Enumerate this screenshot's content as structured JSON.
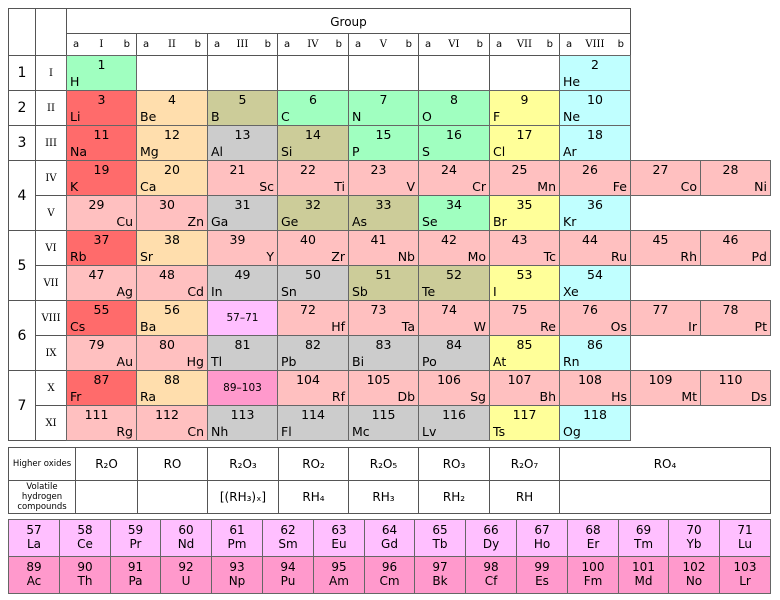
{
  "header": {
    "title": "Group",
    "groups": [
      {
        "a": "a",
        "roman": "I",
        "b": "b"
      },
      {
        "a": "a",
        "roman": "II",
        "b": "b"
      },
      {
        "a": "a",
        "roman": "III",
        "b": "b"
      },
      {
        "a": "a",
        "roman": "IV",
        "b": "b"
      },
      {
        "a": "a",
        "roman": "V",
        "b": "b"
      },
      {
        "a": "a",
        "roman": "VI",
        "b": "b"
      },
      {
        "a": "a",
        "roman": "VII",
        "b": "b"
      },
      {
        "a": "a",
        "roman": "VIII",
        "b": "b"
      }
    ]
  },
  "colors": {
    "alkali": "#ff6b6b",
    "alkaline_earth": "#ffdead",
    "metalloid": "#cccc99",
    "nonmetal": "#a0ffc0",
    "halogen": "#ffff99",
    "noble_gas": "#c0ffff",
    "transition": "#ffc0c0",
    "post_transition": "#cccccc",
    "lanthanide": "#ffbfff",
    "actinide": "#ff99cc"
  },
  "periods": [
    {
      "num": "1",
      "rows": [
        "I"
      ]
    },
    {
      "num": "2",
      "rows": [
        "II"
      ]
    },
    {
      "num": "3",
      "rows": [
        "III"
      ]
    },
    {
      "num": "4",
      "rows": [
        "IV",
        "V"
      ]
    },
    {
      "num": "5",
      "rows": [
        "VI",
        "VII"
      ]
    },
    {
      "num": "6",
      "rows": [
        "VIII",
        "IX"
      ]
    },
    {
      "num": "7",
      "rows": [
        "X",
        "XI"
      ]
    }
  ],
  "elements": [
    {
      "num": "1",
      "sym": "H",
      "row": 0,
      "col": 0,
      "side": "a",
      "cat": "nonmetal"
    },
    {
      "num": "2",
      "sym": "He",
      "row": 0,
      "col": 7,
      "side": "a",
      "cat": "noble_gas"
    },
    {
      "num": "3",
      "sym": "Li",
      "row": 1,
      "col": 0,
      "side": "a",
      "cat": "alkali"
    },
    {
      "num": "4",
      "sym": "Be",
      "row": 1,
      "col": 1,
      "side": "a",
      "cat": "alkaline_earth"
    },
    {
      "num": "5",
      "sym": "B",
      "row": 1,
      "col": 2,
      "side": "a",
      "cat": "metalloid"
    },
    {
      "num": "6",
      "sym": "C",
      "row": 1,
      "col": 3,
      "side": "a",
      "cat": "nonmetal"
    },
    {
      "num": "7",
      "sym": "N",
      "row": 1,
      "col": 4,
      "side": "a",
      "cat": "nonmetal"
    },
    {
      "num": "8",
      "sym": "O",
      "row": 1,
      "col": 5,
      "side": "a",
      "cat": "nonmetal"
    },
    {
      "num": "9",
      "sym": "F",
      "row": 1,
      "col": 6,
      "side": "a",
      "cat": "halogen"
    },
    {
      "num": "10",
      "sym": "Ne",
      "row": 1,
      "col": 7,
      "side": "a",
      "cat": "noble_gas"
    },
    {
      "num": "11",
      "sym": "Na",
      "row": 2,
      "col": 0,
      "side": "a",
      "cat": "alkali"
    },
    {
      "num": "12",
      "sym": "Mg",
      "row": 2,
      "col": 1,
      "side": "a",
      "cat": "alkaline_earth"
    },
    {
      "num": "13",
      "sym": "Al",
      "row": 2,
      "col": 2,
      "side": "a",
      "cat": "post_transition"
    },
    {
      "num": "14",
      "sym": "Si",
      "row": 2,
      "col": 3,
      "side": "a",
      "cat": "metalloid"
    },
    {
      "num": "15",
      "sym": "P",
      "row": 2,
      "col": 4,
      "side": "a",
      "cat": "nonmetal"
    },
    {
      "num": "16",
      "sym": "S",
      "row": 2,
      "col": 5,
      "side": "a",
      "cat": "nonmetal"
    },
    {
      "num": "17",
      "sym": "Cl",
      "row": 2,
      "col": 6,
      "side": "a",
      "cat": "halogen"
    },
    {
      "num": "18",
      "sym": "Ar",
      "row": 2,
      "col": 7,
      "side": "a",
      "cat": "noble_gas"
    },
    {
      "num": "19",
      "sym": "K",
      "row": 3,
      "col": 0,
      "side": "a",
      "cat": "alkali"
    },
    {
      "num": "20",
      "sym": "Ca",
      "row": 3,
      "col": 1,
      "side": "a",
      "cat": "alkaline_earth"
    },
    {
      "num": "21",
      "sym": "Sc",
      "row": 3,
      "col": 2,
      "side": "b",
      "cat": "transition"
    },
    {
      "num": "22",
      "sym": "Ti",
      "row": 3,
      "col": 3,
      "side": "b",
      "cat": "transition"
    },
    {
      "num": "23",
      "sym": "V",
      "row": 3,
      "col": 4,
      "side": "b",
      "cat": "transition"
    },
    {
      "num": "24",
      "sym": "Cr",
      "row": 3,
      "col": 5,
      "side": "b",
      "cat": "transition"
    },
    {
      "num": "25",
      "sym": "Mn",
      "row": 3,
      "col": 6,
      "side": "b",
      "cat": "transition"
    },
    {
      "num": "26",
      "sym": "Fe",
      "row": 3,
      "col": 7,
      "side": "b",
      "cat": "transition"
    },
    {
      "num": "27",
      "sym": "Co",
      "row": 3,
      "col": 8,
      "side": "b",
      "cat": "transition"
    },
    {
      "num": "28",
      "sym": "Ni",
      "row": 3,
      "col": 9,
      "side": "b",
      "cat": "transition"
    },
    {
      "num": "29",
      "sym": "Cu",
      "row": 4,
      "col": 0,
      "side": "b",
      "cat": "transition"
    },
    {
      "num": "30",
      "sym": "Zn",
      "row": 4,
      "col": 1,
      "side": "b",
      "cat": "transition"
    },
    {
      "num": "31",
      "sym": "Ga",
      "row": 4,
      "col": 2,
      "side": "a",
      "cat": "post_transition"
    },
    {
      "num": "32",
      "sym": "Ge",
      "row": 4,
      "col": 3,
      "side": "a",
      "cat": "metalloid"
    },
    {
      "num": "33",
      "sym": "As",
      "row": 4,
      "col": 4,
      "side": "a",
      "cat": "metalloid"
    },
    {
      "num": "34",
      "sym": "Se",
      "row": 4,
      "col": 5,
      "side": "a",
      "cat": "nonmetal"
    },
    {
      "num": "35",
      "sym": "Br",
      "row": 4,
      "col": 6,
      "side": "a",
      "cat": "halogen"
    },
    {
      "num": "36",
      "sym": "Kr",
      "row": 4,
      "col": 7,
      "side": "a",
      "cat": "noble_gas"
    },
    {
      "num": "37",
      "sym": "Rb",
      "row": 5,
      "col": 0,
      "side": "a",
      "cat": "alkali"
    },
    {
      "num": "38",
      "sym": "Sr",
      "row": 5,
      "col": 1,
      "side": "a",
      "cat": "alkaline_earth"
    },
    {
      "num": "39",
      "sym": "Y",
      "row": 5,
      "col": 2,
      "side": "b",
      "cat": "transition"
    },
    {
      "num": "40",
      "sym": "Zr",
      "row": 5,
      "col": 3,
      "side": "b",
      "cat": "transition"
    },
    {
      "num": "41",
      "sym": "Nb",
      "row": 5,
      "col": 4,
      "side": "b",
      "cat": "transition"
    },
    {
      "num": "42",
      "sym": "Mo",
      "row": 5,
      "col": 5,
      "side": "b",
      "cat": "transition"
    },
    {
      "num": "43",
      "sym": "Tc",
      "row": 5,
      "col": 6,
      "side": "b",
      "cat": "transition"
    },
    {
      "num": "44",
      "sym": "Ru",
      "row": 5,
      "col": 7,
      "side": "b",
      "cat": "transition"
    },
    {
      "num": "45",
      "sym": "Rh",
      "row": 5,
      "col": 8,
      "side": "b",
      "cat": "transition"
    },
    {
      "num": "46",
      "sym": "Pd",
      "row": 5,
      "col": 9,
      "side": "b",
      "cat": "transition"
    },
    {
      "num": "47",
      "sym": "Ag",
      "row": 6,
      "col": 0,
      "side": "b",
      "cat": "transition"
    },
    {
      "num": "48",
      "sym": "Cd",
      "row": 6,
      "col": 1,
      "side": "b",
      "cat": "transition"
    },
    {
      "num": "49",
      "sym": "In",
      "row": 6,
      "col": 2,
      "side": "a",
      "cat": "post_transition"
    },
    {
      "num": "50",
      "sym": "Sn",
      "row": 6,
      "col": 3,
      "side": "a",
      "cat": "post_transition"
    },
    {
      "num": "51",
      "sym": "Sb",
      "row": 6,
      "col": 4,
      "side": "a",
      "cat": "metalloid"
    },
    {
      "num": "52",
      "sym": "Te",
      "row": 6,
      "col": 5,
      "side": "a",
      "cat": "metalloid"
    },
    {
      "num": "53",
      "sym": "I",
      "row": 6,
      "col": 6,
      "side": "a",
      "cat": "halogen"
    },
    {
      "num": "54",
      "sym": "Xe",
      "row": 6,
      "col": 7,
      "side": "a",
      "cat": "noble_gas"
    },
    {
      "num": "55",
      "sym": "Cs",
      "row": 7,
      "col": 0,
      "side": "a",
      "cat": "alkali"
    },
    {
      "num": "56",
      "sym": "Ba",
      "row": 7,
      "col": 1,
      "side": "a",
      "cat": "alkaline_earth"
    },
    {
      "num": "57–71",
      "sym": "",
      "row": 7,
      "col": 2,
      "side": "range",
      "cat": "lanthanide"
    },
    {
      "num": "72",
      "sym": "Hf",
      "row": 7,
      "col": 3,
      "side": "b",
      "cat": "transition"
    },
    {
      "num": "73",
      "sym": "Ta",
      "row": 7,
      "col": 4,
      "side": "b",
      "cat": "transition"
    },
    {
      "num": "74",
      "sym": "W",
      "row": 7,
      "col": 5,
      "side": "b",
      "cat": "transition"
    },
    {
      "num": "75",
      "sym": "Re",
      "row": 7,
      "col": 6,
      "side": "b",
      "cat": "transition"
    },
    {
      "num": "76",
      "sym": "Os",
      "row": 7,
      "col": 7,
      "side": "b",
      "cat": "transition"
    },
    {
      "num": "77",
      "sym": "Ir",
      "row": 7,
      "col": 8,
      "side": "b",
      "cat": "transition"
    },
    {
      "num": "78",
      "sym": "Pt",
      "row": 7,
      "col": 9,
      "side": "b",
      "cat": "transition"
    },
    {
      "num": "79",
      "sym": "Au",
      "row": 8,
      "col": 0,
      "side": "b",
      "cat": "transition"
    },
    {
      "num": "80",
      "sym": "Hg",
      "row": 8,
      "col": 1,
      "side": "b",
      "cat": "transition"
    },
    {
      "num": "81",
      "sym": "Tl",
      "row": 8,
      "col": 2,
      "side": "a",
      "cat": "post_transition"
    },
    {
      "num": "82",
      "sym": "Pb",
      "row": 8,
      "col": 3,
      "side": "a",
      "cat": "post_transition"
    },
    {
      "num": "83",
      "sym": "Bi",
      "row": 8,
      "col": 4,
      "side": "a",
      "cat": "post_transition"
    },
    {
      "num": "84",
      "sym": "Po",
      "row": 8,
      "col": 5,
      "side": "a",
      "cat": "post_transition"
    },
    {
      "num": "85",
      "sym": "At",
      "row": 8,
      "col": 6,
      "side": "a",
      "cat": "halogen"
    },
    {
      "num": "86",
      "sym": "Rn",
      "row": 8,
      "col": 7,
      "side": "a",
      "cat": "noble_gas"
    },
    {
      "num": "87",
      "sym": "Fr",
      "row": 9,
      "col": 0,
      "side": "a",
      "cat": "alkali"
    },
    {
      "num": "88",
      "sym": "Ra",
      "row": 9,
      "col": 1,
      "side": "a",
      "cat": "alkaline_earth"
    },
    {
      "num": "89–103",
      "sym": "",
      "row": 9,
      "col": 2,
      "side": "range",
      "cat": "actinide"
    },
    {
      "num": "104",
      "sym": "Rf",
      "row": 9,
      "col": 3,
      "side": "b",
      "cat": "transition"
    },
    {
      "num": "105",
      "sym": "Db",
      "row": 9,
      "col": 4,
      "side": "b",
      "cat": "transition"
    },
    {
      "num": "106",
      "sym": "Sg",
      "row": 9,
      "col": 5,
      "side": "b",
      "cat": "transition"
    },
    {
      "num": "107",
      "sym": "Bh",
      "row": 9,
      "col": 6,
      "side": "b",
      "cat": "transition"
    },
    {
      "num": "108",
      "sym": "Hs",
      "row": 9,
      "col": 7,
      "side": "b",
      "cat": "transition"
    },
    {
      "num": "109",
      "sym": "Mt",
      "row": 9,
      "col": 8,
      "side": "b",
      "cat": "transition"
    },
    {
      "num": "110",
      "sym": "Ds",
      "row": 9,
      "col": 9,
      "side": "b",
      "cat": "transition"
    },
    {
      "num": "111",
      "sym": "Rg",
      "row": 10,
      "col": 0,
      "side": "b",
      "cat": "transition"
    },
    {
      "num": "112",
      "sym": "Cn",
      "row": 10,
      "col": 1,
      "side": "b",
      "cat": "transition"
    },
    {
      "num": "113",
      "sym": "Nh",
      "row": 10,
      "col": 2,
      "side": "a",
      "cat": "post_transition"
    },
    {
      "num": "114",
      "sym": "Fl",
      "row": 10,
      "col": 3,
      "side": "a",
      "cat": "post_transition"
    },
    {
      "num": "115",
      "sym": "Mc",
      "row": 10,
      "col": 4,
      "side": "a",
      "cat": "post_transition"
    },
    {
      "num": "116",
      "sym": "Lv",
      "row": 10,
      "col": 5,
      "side": "a",
      "cat": "post_transition"
    },
    {
      "num": "117",
      "sym": "Ts",
      "row": 10,
      "col": 6,
      "side": "a",
      "cat": "halogen"
    },
    {
      "num": "118",
      "sym": "Og",
      "row": 10,
      "col": 7,
      "side": "a",
      "cat": "noble_gas"
    }
  ],
  "oxides": {
    "higher_label": "Higher oxides",
    "higher": [
      "R₂O",
      "RO",
      "R₂O₃",
      "RO₂",
      "R₂O₅",
      "RO₃",
      "R₂O₇",
      "RO₄"
    ],
    "hydrogen_label": "Volatile hydrogen compounds",
    "hydrogen": [
      "",
      "",
      "[(RH₃)ₓ]",
      "RH₄",
      "RH₃",
      "RH₂",
      "RH",
      ""
    ]
  },
  "lanthanides": [
    {
      "num": "57",
      "sym": "La"
    },
    {
      "num": "58",
      "sym": "Ce"
    },
    {
      "num": "59",
      "sym": "Pr"
    },
    {
      "num": "60",
      "sym": "Nd"
    },
    {
      "num": "61",
      "sym": "Pm"
    },
    {
      "num": "62",
      "sym": "Sm"
    },
    {
      "num": "63",
      "sym": "Eu"
    },
    {
      "num": "64",
      "sym": "Gd"
    },
    {
      "num": "65",
      "sym": "Tb"
    },
    {
      "num": "66",
      "sym": "Dy"
    },
    {
      "num": "67",
      "sym": "Ho"
    },
    {
      "num": "68",
      "sym": "Er"
    },
    {
      "num": "69",
      "sym": "Tm"
    },
    {
      "num": "70",
      "sym": "Yb"
    },
    {
      "num": "71",
      "sym": "Lu"
    }
  ],
  "actinides": [
    {
      "num": "89",
      "sym": "Ac"
    },
    {
      "num": "90",
      "sym": "Th"
    },
    {
      "num": "91",
      "sym": "Pa"
    },
    {
      "num": "92",
      "sym": "U"
    },
    {
      "num": "93",
      "sym": "Np"
    },
    {
      "num": "94",
      "sym": "Pu"
    },
    {
      "num": "95",
      "sym": "Am"
    },
    {
      "num": "96",
      "sym": "Cm"
    },
    {
      "num": "97",
      "sym": "Bk"
    },
    {
      "num": "98",
      "sym": "Cf"
    },
    {
      "num": "99",
      "sym": "Es"
    },
    {
      "num": "100",
      "sym": "Fm"
    },
    {
      "num": "101",
      "sym": "Md"
    },
    {
      "num": "102",
      "sym": "No"
    },
    {
      "num": "103",
      "sym": "Lr"
    }
  ]
}
